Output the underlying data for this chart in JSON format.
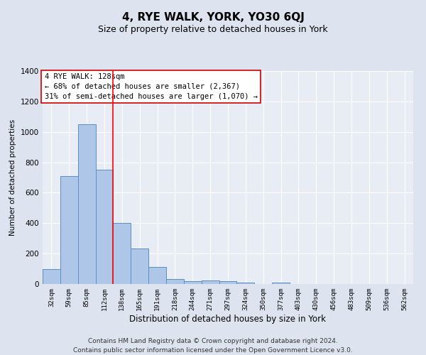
{
  "title": "4, RYE WALK, YORK, YO30 6QJ",
  "subtitle": "Size of property relative to detached houses in York",
  "xlabel": "Distribution of detached houses by size in York",
  "ylabel": "Number of detached properties",
  "categories": [
    "32sqm",
    "59sqm",
    "85sqm",
    "112sqm",
    "138sqm",
    "165sqm",
    "191sqm",
    "218sqm",
    "244sqm",
    "271sqm",
    "297sqm",
    "324sqm",
    "350sqm",
    "377sqm",
    "403sqm",
    "430sqm",
    "456sqm",
    "483sqm",
    "509sqm",
    "536sqm",
    "562sqm"
  ],
  "values": [
    100,
    710,
    1050,
    750,
    400,
    235,
    110,
    35,
    20,
    25,
    20,
    10,
    0,
    10,
    0,
    0,
    0,
    0,
    0,
    0,
    0
  ],
  "bar_color": "#aec6e8",
  "bar_edge_color": "#5b8fbe",
  "red_line_x": 3.5,
  "annotation_text": "4 RYE WALK: 128sqm\n← 68% of detached houses are smaller (2,367)\n31% of semi-detached houses are larger (1,070) →",
  "annotation_box_color": "#ffffff",
  "annotation_box_edge_color": "#cc0000",
  "ylim": [
    0,
    1400
  ],
  "yticks": [
    0,
    200,
    400,
    600,
    800,
    1000,
    1200,
    1400
  ],
  "footer": "Contains HM Land Registry data © Crown copyright and database right 2024.\nContains public sector information licensed under the Open Government Licence v3.0.",
  "background_color": "#dde4ef",
  "plot_background_color": "#e8edf5",
  "grid_color": "#ffffff",
  "title_fontsize": 11,
  "subtitle_fontsize": 9,
  "annotation_fontsize": 7.5,
  "footer_fontsize": 6.5,
  "ylabel_fontsize": 7.5,
  "xlabel_fontsize": 8.5
}
